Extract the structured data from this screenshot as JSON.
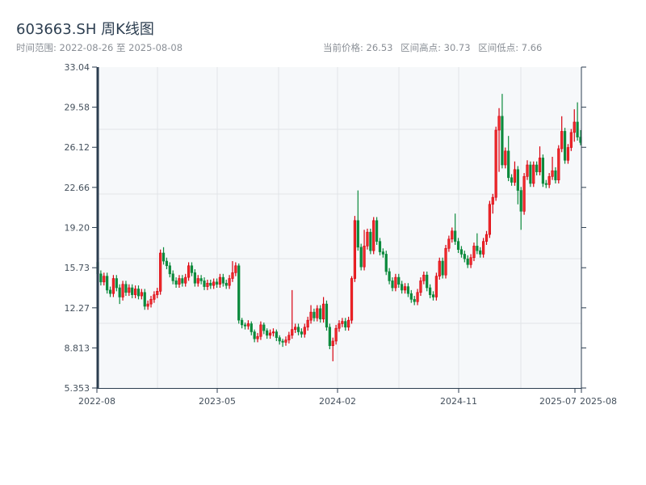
{
  "header": {
    "title": "603663.SH 周K线图",
    "time_range": "时间范围: 2022-08-26 至 2025-08-08",
    "current_price": "当前价格: 26.53",
    "range_high": "区间高点: 30.73",
    "range_low": "区间低点: 7.66"
  },
  "colors": {
    "up": "#d7000f",
    "down": "#0b8a3c",
    "axis": "#2c3e50",
    "grid": "#e1e4e8",
    "plot_bg": "#f6f8fa"
  },
  "chart_data": {
    "type": "candlestick",
    "title": "603663.SH 周K线图",
    "x_range": [
      "2022-08-26",
      "2025-08-08"
    ],
    "ylim": [
      5.353,
      33.04
    ],
    "y_ticks": [
      "33.04",
      "29.58",
      "26.12",
      "22.66",
      "19.20",
      "15.73",
      "12.27",
      "8.813",
      "5.353"
    ],
    "x_ticks": [
      "2022-08",
      "2023-05",
      "2024-02",
      "2024-11",
      "2025-07",
      "2025-08"
    ],
    "grid": true,
    "candle_format": [
      "open",
      "high",
      "low",
      "close"
    ],
    "candles": [
      [
        16.2,
        16.8,
        14.4,
        15.2
      ],
      [
        15.2,
        15.5,
        14.2,
        14.5
      ],
      [
        14.5,
        15.3,
        14.2,
        15.0
      ],
      [
        15.0,
        15.3,
        13.5,
        13.8
      ],
      [
        13.8,
        14.1,
        13.2,
        13.5
      ],
      [
        13.5,
        15.1,
        13.2,
        14.8
      ],
      [
        14.8,
        15.1,
        13.7,
        14.0
      ],
      [
        14.0,
        14.3,
        12.6,
        13.2
      ],
      [
        13.2,
        14.6,
        12.9,
        14.3
      ],
      [
        14.3,
        14.6,
        13.3,
        13.6
      ],
      [
        13.6,
        14.3,
        13.3,
        14.0
      ],
      [
        14.0,
        14.3,
        13.1,
        13.4
      ],
      [
        13.4,
        14.2,
        13.1,
        13.9
      ],
      [
        13.9,
        14.2,
        13.0,
        13.3
      ],
      [
        13.3,
        13.9,
        13.0,
        13.6
      ],
      [
        13.6,
        13.9,
        12.1,
        12.4
      ],
      [
        12.4,
        12.9,
        12.1,
        12.6
      ],
      [
        12.6,
        13.3,
        12.3,
        13.0
      ],
      [
        13.0,
        13.7,
        12.7,
        13.4
      ],
      [
        13.4,
        14.0,
        13.1,
        13.7
      ],
      [
        13.7,
        17.3,
        13.4,
        17.0
      ],
      [
        17.0,
        17.5,
        16.0,
        16.3
      ],
      [
        16.3,
        16.6,
        15.6,
        15.9
      ],
      [
        15.9,
        16.2,
        14.9,
        15.2
      ],
      [
        15.2,
        15.5,
        14.3,
        14.6
      ],
      [
        14.6,
        14.9,
        14.0,
        14.3
      ],
      [
        14.3,
        15.1,
        14.0,
        14.8
      ],
      [
        14.8,
        15.1,
        14.1,
        14.4
      ],
      [
        14.4,
        15.2,
        14.1,
        14.9
      ],
      [
        14.9,
        16.2,
        14.6,
        15.9
      ],
      [
        15.9,
        16.2,
        15.0,
        15.3
      ],
      [
        15.3,
        15.6,
        14.1,
        14.4
      ],
      [
        14.4,
        15.1,
        14.1,
        14.8
      ],
      [
        14.8,
        15.1,
        14.3,
        14.6
      ],
      [
        14.6,
        14.9,
        13.8,
        14.1
      ],
      [
        14.1,
        14.7,
        13.8,
        14.4
      ],
      [
        14.4,
        14.7,
        13.9,
        14.2
      ],
      [
        14.2,
        14.8,
        13.9,
        14.5
      ],
      [
        14.5,
        14.8,
        14.0,
        14.3
      ],
      [
        14.3,
        15.2,
        14.0,
        14.9
      ],
      [
        14.9,
        15.2,
        14.1,
        14.4
      ],
      [
        14.4,
        14.7,
        13.9,
        14.2
      ],
      [
        14.2,
        15.1,
        13.9,
        14.8
      ],
      [
        14.8,
        16.3,
        14.5,
        15.3
      ],
      [
        15.3,
        16.2,
        15.0,
        15.9
      ],
      [
        15.9,
        16.1,
        10.9,
        11.2
      ],
      [
        11.2,
        11.4,
        10.5,
        10.8
      ],
      [
        10.8,
        11.0,
        10.4,
        10.7
      ],
      [
        10.7,
        11.2,
        10.4,
        10.9
      ],
      [
        10.9,
        11.1,
        9.9,
        10.2
      ],
      [
        10.2,
        10.4,
        9.3,
        9.6
      ],
      [
        9.6,
        10.1,
        9.3,
        9.8
      ],
      [
        9.8,
        11.1,
        9.5,
        10.8
      ],
      [
        10.8,
        11.0,
        10.0,
        10.3
      ],
      [
        10.3,
        10.5,
        9.6,
        9.9
      ],
      [
        9.9,
        10.4,
        9.6,
        10.1
      ],
      [
        10.1,
        10.5,
        9.8,
        10.2
      ],
      [
        10.2,
        10.4,
        9.4,
        9.7
      ],
      [
        9.7,
        9.9,
        9.1,
        9.4
      ],
      [
        9.4,
        9.6,
        8.9,
        9.3
      ],
      [
        9.3,
        9.8,
        9.0,
        9.5
      ],
      [
        9.5,
        10.2,
        9.2,
        9.9
      ],
      [
        9.9,
        13.8,
        9.6,
        10.4
      ],
      [
        10.4,
        10.9,
        10.1,
        10.6
      ],
      [
        10.6,
        10.9,
        9.9,
        10.2
      ],
      [
        10.2,
        10.5,
        9.7,
        10.0
      ],
      [
        10.0,
        10.9,
        9.7,
        10.6
      ],
      [
        10.6,
        11.5,
        10.3,
        11.2
      ],
      [
        11.2,
        12.5,
        10.9,
        11.9
      ],
      [
        11.9,
        12.2,
        11.1,
        11.4
      ],
      [
        11.4,
        12.5,
        11.1,
        12.2
      ],
      [
        12.2,
        12.5,
        11.0,
        11.3
      ],
      [
        11.3,
        13.2,
        11.0,
        12.6
      ],
      [
        12.6,
        12.9,
        10.3,
        10.6
      ],
      [
        10.6,
        10.9,
        8.7,
        9.0
      ],
      [
        9.0,
        9.7,
        7.66,
        9.4
      ],
      [
        9.4,
        10.8,
        9.1,
        10.5
      ],
      [
        10.5,
        11.2,
        10.2,
        10.9
      ],
      [
        10.9,
        11.4,
        10.6,
        11.1
      ],
      [
        11.1,
        11.4,
        10.3,
        10.6
      ],
      [
        10.6,
        11.5,
        10.3,
        11.2
      ],
      [
        11.2,
        15.0,
        10.9,
        14.8
      ],
      [
        14.8,
        20.2,
        14.5,
        19.8
      ],
      [
        19.8,
        22.4,
        17.2,
        17.5
      ],
      [
        17.5,
        17.8,
        15.5,
        15.8
      ],
      [
        15.8,
        19.0,
        15.5,
        17.6
      ],
      [
        17.6,
        19.1,
        17.3,
        18.8
      ],
      [
        18.8,
        19.1,
        16.9,
        17.2
      ],
      [
        17.2,
        20.1,
        16.9,
        19.8
      ],
      [
        19.8,
        20.1,
        17.7,
        18.0
      ],
      [
        18.0,
        18.3,
        16.8,
        17.1
      ],
      [
        17.1,
        17.4,
        16.6,
        16.9
      ],
      [
        16.9,
        17.2,
        15.1,
        15.4
      ],
      [
        15.4,
        15.7,
        14.3,
        14.6
      ],
      [
        14.6,
        14.9,
        13.7,
        14.0
      ],
      [
        14.0,
        15.2,
        13.7,
        14.9
      ],
      [
        14.9,
        15.2,
        14.0,
        14.3
      ],
      [
        14.3,
        14.6,
        13.5,
        13.8
      ],
      [
        13.8,
        14.4,
        13.5,
        14.1
      ],
      [
        14.1,
        14.4,
        13.2,
        13.5
      ],
      [
        13.5,
        13.8,
        12.7,
        13.0
      ],
      [
        13.0,
        13.3,
        12.5,
        12.8
      ],
      [
        12.8,
        13.9,
        12.5,
        13.6
      ],
      [
        13.6,
        14.9,
        13.3,
        14.6
      ],
      [
        14.6,
        15.4,
        14.3,
        15.1
      ],
      [
        15.1,
        15.4,
        13.7,
        14.0
      ],
      [
        14.0,
        14.3,
        13.1,
        13.4
      ],
      [
        13.4,
        13.7,
        12.9,
        13.2
      ],
      [
        13.2,
        15.3,
        12.9,
        15.0
      ],
      [
        15.0,
        16.6,
        14.7,
        16.3
      ],
      [
        16.3,
        16.6,
        14.8,
        15.1
      ],
      [
        15.1,
        17.7,
        14.8,
        17.4
      ],
      [
        17.4,
        18.5,
        17.1,
        18.2
      ],
      [
        18.2,
        19.2,
        17.9,
        18.9
      ],
      [
        18.9,
        20.4,
        17.7,
        18.0
      ],
      [
        18.0,
        18.3,
        17.0,
        17.3
      ],
      [
        17.3,
        17.6,
        16.6,
        16.9
      ],
      [
        16.9,
        17.2,
        16.2,
        16.5
      ],
      [
        16.5,
        16.8,
        15.7,
        16.0
      ],
      [
        16.0,
        16.9,
        15.7,
        16.6
      ],
      [
        16.6,
        17.9,
        16.3,
        17.6
      ],
      [
        17.6,
        18.7,
        16.9,
        17.2
      ],
      [
        17.2,
        17.5,
        16.6,
        16.9
      ],
      [
        16.9,
        18.3,
        16.6,
        18.0
      ],
      [
        18.0,
        18.9,
        17.7,
        18.6
      ],
      [
        18.6,
        21.5,
        18.3,
        21.2
      ],
      [
        21.2,
        22.1,
        20.4,
        21.8
      ],
      [
        21.8,
        27.9,
        21.5,
        27.6
      ],
      [
        27.6,
        29.5,
        24.0,
        28.8
      ],
      [
        28.8,
        30.73,
        24.3,
        24.6
      ],
      [
        24.6,
        26.1,
        24.3,
        25.8
      ],
      [
        25.8,
        27.1,
        23.2,
        23.5
      ],
      [
        23.5,
        23.8,
        22.8,
        23.1
      ],
      [
        23.1,
        24.9,
        22.8,
        24.2
      ],
      [
        24.2,
        24.5,
        21.2,
        22.4
      ],
      [
        22.4,
        22.7,
        19.0,
        20.6
      ],
      [
        20.6,
        23.9,
        20.3,
        23.6
      ],
      [
        23.6,
        25.0,
        23.3,
        24.6
      ],
      [
        24.6,
        24.9,
        22.7,
        23.0
      ],
      [
        23.0,
        24.9,
        22.7,
        24.6
      ],
      [
        24.6,
        24.9,
        23.7,
        24.0
      ],
      [
        24.0,
        26.2,
        23.7,
        25.2
      ],
      [
        25.2,
        25.5,
        22.7,
        23.0
      ],
      [
        23.0,
        23.3,
        22.6,
        22.9
      ],
      [
        22.9,
        23.9,
        22.6,
        23.6
      ],
      [
        23.6,
        25.3,
        23.3,
        24.1
      ],
      [
        24.1,
        24.4,
        23.0,
        23.3
      ],
      [
        23.3,
        26.3,
        23.0,
        26.0
      ],
      [
        26.0,
        28.8,
        25.7,
        27.5
      ],
      [
        27.5,
        27.8,
        24.7,
        25.0
      ],
      [
        25.0,
        26.4,
        24.7,
        26.1
      ],
      [
        26.1,
        27.7,
        25.8,
        27.4
      ],
      [
        27.4,
        29.4,
        26.6,
        28.3
      ],
      [
        28.3,
        30.0,
        26.7,
        27.0
      ],
      [
        27.0,
        27.6,
        26.3,
        26.53
      ]
    ]
  }
}
